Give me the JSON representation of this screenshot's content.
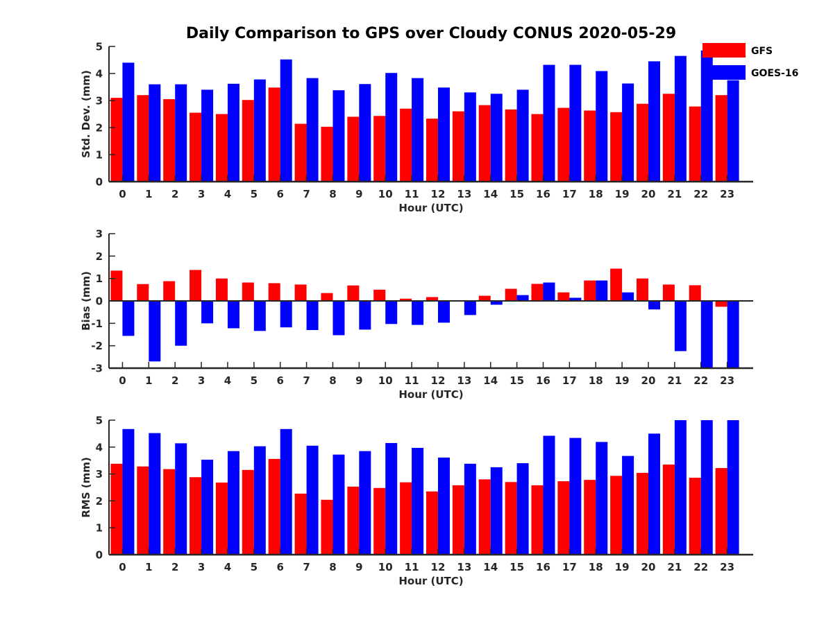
{
  "chart_data": {
    "type": "bar",
    "title": "Daily Comparison to GPS over Cloudy CONUS 2020-05-29",
    "legend": {
      "placement": "top-right",
      "entries": [
        {
          "name": "GFS",
          "color": "#ff0000"
        },
        {
          "name": "GOES-16",
          "color": "#0000ff"
        }
      ]
    },
    "categories": [
      "0",
      "1",
      "2",
      "3",
      "4",
      "5",
      "6",
      "7",
      "8",
      "9",
      "10",
      "11",
      "12",
      "13",
      "14",
      "15",
      "16",
      "17",
      "18",
      "19",
      "20",
      "21",
      "22",
      "23"
    ],
    "panels": [
      {
        "id": "std",
        "xlabel": "Hour (UTC)",
        "ylabel": "Std. Dev. (mm)",
        "ylim": [
          0,
          5
        ],
        "yticks": [
          "0",
          "1",
          "2",
          "3",
          "4",
          "5"
        ],
        "series": [
          {
            "name": "GFS",
            "color": "#ff0000",
            "values": [
              3.1,
              3.2,
              3.05,
              2.55,
              2.5,
              3.02,
              3.48,
              2.14,
              2.03,
              2.4,
              2.43,
              2.7,
              2.33,
              2.6,
              2.83,
              2.67,
              2.5,
              2.73,
              2.63,
              2.57,
              2.88,
              3.25,
              2.78,
              3.2
            ]
          },
          {
            "name": "GOES-16",
            "color": "#0000ff",
            "values": [
              4.4,
              3.6,
              3.6,
              3.4,
              3.62,
              3.78,
              4.52,
              3.83,
              3.38,
              3.61,
              4.02,
              3.83,
              3.48,
              3.3,
              3.25,
              3.4,
              4.32,
              4.32,
              4.09,
              3.63,
              4.45,
              4.65,
              4.85,
              3.75
            ]
          }
        ]
      },
      {
        "id": "bias",
        "xlabel": "Hour (UTC)",
        "ylabel": "Bias (mm)",
        "ylim": [
          -3,
          3
        ],
        "yticks": [
          "-3",
          "-2",
          "-1",
          "0",
          "1",
          "2",
          "3"
        ],
        "series": [
          {
            "name": "GFS",
            "color": "#ff0000",
            "values": [
              1.35,
              0.75,
              0.88,
              1.38,
              1.0,
              0.82,
              0.79,
              0.73,
              0.35,
              0.69,
              0.5,
              0.1,
              0.17,
              0.0,
              0.23,
              0.54,
              0.76,
              0.38,
              0.91,
              1.44,
              1.0,
              0.73,
              0.7,
              -0.26
            ]
          },
          {
            "name": "GOES-16",
            "color": "#0000ff",
            "values": [
              -1.56,
              -2.7,
              -2.0,
              -1.0,
              -1.22,
              -1.34,
              -1.18,
              -1.3,
              -1.53,
              -1.28,
              -1.03,
              -1.07,
              -0.97,
              -0.63,
              -0.17,
              0.26,
              0.82,
              0.14,
              0.91,
              0.38,
              -0.38,
              -2.24,
              -3.0,
              -3.0
            ]
          }
        ]
      },
      {
        "id": "rms",
        "xlabel": "Hour (UTC)",
        "ylabel": "RMS (mm)",
        "ylim": [
          0,
          5
        ],
        "yticks": [
          "0",
          "1",
          "2",
          "3",
          "4",
          "5"
        ],
        "series": [
          {
            "name": "GFS",
            "color": "#ff0000",
            "values": [
              3.38,
              3.28,
              3.18,
              2.88,
              2.68,
              3.15,
              3.56,
              2.27,
              2.04,
              2.53,
              2.48,
              2.69,
              2.35,
              2.58,
              2.8,
              2.7,
              2.58,
              2.73,
              2.78,
              2.93,
              3.04,
              3.35,
              2.86,
              3.22
            ]
          },
          {
            "name": "GOES-16",
            "color": "#0000ff",
            "values": [
              4.67,
              4.52,
              4.14,
              3.53,
              3.85,
              4.03,
              4.67,
              4.05,
              3.72,
              3.85,
              4.15,
              3.97,
              3.61,
              3.38,
              3.25,
              3.4,
              4.42,
              4.34,
              4.19,
              3.67,
              4.5,
              5.0,
              5.0,
              5.0
            ]
          }
        ]
      }
    ]
  }
}
